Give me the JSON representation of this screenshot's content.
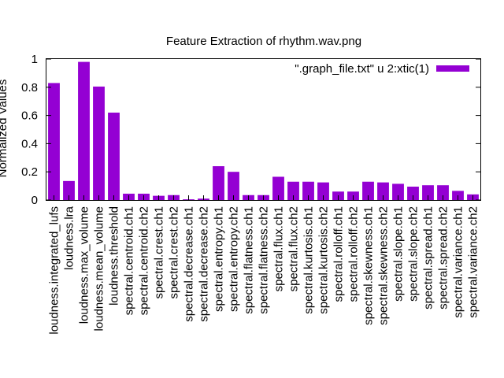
{
  "chart_data": {
    "type": "bar",
    "title": "Feature Extraction of rhythm.wav.png",
    "ylabel": "Normalized Values",
    "xlabel": "",
    "ylim": [
      0,
      1
    ],
    "yticks": [
      "0",
      "0.2",
      "0.4",
      "0.6",
      "0.8",
      "1"
    ],
    "ytick_values": [
      0,
      0.2,
      0.4,
      0.6,
      0.8,
      1
    ],
    "grid": false,
    "legend_position": "top-right",
    "bar_color": "#9400d3",
    "categories": [
      "loudness.integrated_lufs",
      "loudness.lra",
      "loudness.max_volume",
      "loudness.mean_volume",
      "loudness.threshold",
      "spectral.centroid.ch1",
      "spectral.centroid.ch2",
      "spectral.crest.ch1",
      "spectral.crest.ch2",
      "spectral.decrease.ch1",
      "spectral.decrease.ch2",
      "spectral.entropy.ch1",
      "spectral.entropy.ch2",
      "spectral.flatness.ch1",
      "spectral.flatness.ch2",
      "spectral.flux.ch1",
      "spectral.flux.ch2",
      "spectral.kurtosis.ch1",
      "spectral.kurtosis.ch2",
      "spectral.rolloff.ch1",
      "spectral.rolloff.ch2",
      "spectral.skewness.ch1",
      "spectral.skewness.ch2",
      "spectral.slope.ch1",
      "spectral.slope.ch2",
      "spectral.spread.ch1",
      "spectral.spread.ch2",
      "spectral.variance.ch1",
      "spectral.variance.ch2"
    ],
    "series": [
      {
        "name": "\".graph_file.txt\" u 2:xtic(1)",
        "values": [
          0.83,
          0.135,
          0.98,
          0.805,
          0.62,
          0.045,
          0.045,
          0.03,
          0.035,
          0.005,
          0.01,
          0.24,
          0.2,
          0.035,
          0.035,
          0.165,
          0.13,
          0.13,
          0.125,
          0.06,
          0.06,
          0.13,
          0.125,
          0.115,
          0.095,
          0.105,
          0.105,
          0.065,
          0.04
        ]
      }
    ]
  }
}
